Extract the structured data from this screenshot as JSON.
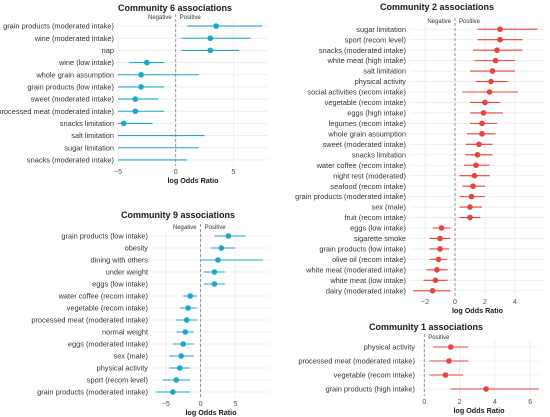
{
  "chart_data": [
    {
      "type": "scatter",
      "subtype": "forest",
      "title": "Community 6 associations",
      "xlabel": "log Odds Ratio",
      "neg_label": "Negative",
      "pos_label": "Positive",
      "xlim": [
        -5,
        8
      ],
      "xticks": [
        -5,
        0,
        5
      ],
      "color": "#1aa7c9",
      "rows": [
        {
          "label": "grain products (moderated intake)",
          "est": 3.5,
          "lo": 1.0,
          "hi": 7.5
        },
        {
          "label": "wine (moderated intake)",
          "est": 3.0,
          "lo": 0.5,
          "hi": 6.5
        },
        {
          "label": "nap",
          "est": 3.0,
          "lo": 0.5,
          "hi": 5.5
        },
        {
          "label": "wine (low intake)",
          "est": -2.5,
          "lo": -4.0,
          "hi": -1.0
        },
        {
          "label": "whole grain assumption",
          "est": -3.0,
          "lo": -8.0,
          "hi": 2.0
        },
        {
          "label": "grain products (low intake)",
          "est": -3.0,
          "lo": -5.5,
          "hi": -1.0
        },
        {
          "label": "sweet (moderated intake)",
          "est": -3.5,
          "lo": -5.5,
          "hi": -1.5
        },
        {
          "label": "processed meat (moderated intake)",
          "est": -3.5,
          "lo": -6.0,
          "hi": -1.0
        },
        {
          "label": "snacks limitation",
          "est": -4.5,
          "lo": -7.0,
          "hi": -2.0
        },
        {
          "label": "salt limitation",
          "est": null,
          "lo": -8.0,
          "hi": 2.5
        },
        {
          "label": "sugar limitation",
          "est": null,
          "lo": -8.0,
          "hi": 2.0
        },
        {
          "label": "snacks (moderated intake)",
          "est": null,
          "lo": -8.0,
          "hi": 1.0
        }
      ]
    },
    {
      "type": "scatter",
      "subtype": "forest",
      "title": "Community 2 associations",
      "xlabel": "log Odds Ratio",
      "neg_label": "Negative",
      "pos_label": "Positive",
      "xlim": [
        -3,
        6
      ],
      "xticks": [
        -2,
        0,
        2,
        4
      ],
      "color": "#e8423b",
      "rows": [
        {
          "label": "sugar limitation",
          "est": 3.0,
          "lo": 1.5,
          "hi": 5.5
        },
        {
          "label": "sport (recom level)",
          "est": 3.0,
          "lo": 1.5,
          "hi": 4.5
        },
        {
          "label": "snacks (moderated intake)",
          "est": 2.8,
          "lo": 1.2,
          "hi": 4.5
        },
        {
          "label": "white meat (high intake)",
          "est": 2.7,
          "lo": 1.3,
          "hi": 4.0
        },
        {
          "label": "salt limitation",
          "est": 2.5,
          "lo": 1.0,
          "hi": 4.0
        },
        {
          "label": "physical activity",
          "est": 2.4,
          "lo": 1.4,
          "hi": 3.5
        },
        {
          "label": "social activities (recom intake)",
          "est": 2.3,
          "lo": 0.5,
          "hi": 4.2
        },
        {
          "label": "vegetable (recom intake)",
          "est": 2.0,
          "lo": 1.0,
          "hi": 3.0
        },
        {
          "label": "eggs (high intake)",
          "est": 1.9,
          "lo": 1.0,
          "hi": 3.2
        },
        {
          "label": "legumes (recom intake)",
          "est": 1.8,
          "lo": 1.0,
          "hi": 2.8
        },
        {
          "label": "whole grain assumption",
          "est": 1.8,
          "lo": 0.8,
          "hi": 2.7
        },
        {
          "label": "sweet (moderated intake)",
          "est": 1.6,
          "lo": 0.7,
          "hi": 2.5
        },
        {
          "label": "snacks limitation",
          "est": 1.5,
          "lo": 0.7,
          "hi": 2.5
        },
        {
          "label": "water coffee (recom intake)",
          "est": 1.4,
          "lo": 0.6,
          "hi": 2.3
        },
        {
          "label": "night rest (moderated)",
          "est": 1.3,
          "lo": 0.3,
          "hi": 2.3
        },
        {
          "label": "seafood (recom intake)",
          "est": 1.2,
          "lo": 0.5,
          "hi": 2.0
        },
        {
          "label": "grain products (moderated intake)",
          "est": 1.1,
          "lo": 0.3,
          "hi": 2.0
        },
        {
          "label": "sex (male)",
          "est": 1.0,
          "lo": 0.3,
          "hi": 1.8
        },
        {
          "label": "fruit (recom intake)",
          "est": 1.0,
          "lo": 0.3,
          "hi": 1.7
        },
        {
          "label": "eggs (low intake)",
          "est": -0.9,
          "lo": -1.5,
          "hi": -0.3
        },
        {
          "label": "sigarette smoke",
          "est": -1.0,
          "lo": -1.7,
          "hi": -0.3
        },
        {
          "label": "grain products (low intake)",
          "est": -1.0,
          "lo": -1.7,
          "hi": -0.4
        },
        {
          "label": "olive oil (recom intake)",
          "est": -1.1,
          "lo": -1.7,
          "hi": -0.5
        },
        {
          "label": "white meat (moderated intake)",
          "est": -1.2,
          "lo": -1.9,
          "hi": -0.5
        },
        {
          "label": "white meat (low intake)",
          "est": -1.3,
          "lo": -2.1,
          "hi": -0.5
        },
        {
          "label": "dairy (moderated intake)",
          "est": -1.5,
          "lo": -2.8,
          "hi": -0.3
        }
      ]
    },
    {
      "type": "scatter",
      "subtype": "forest",
      "title": "Community 9 associations",
      "xlabel": "log Odds Ratio",
      "neg_label": "Negative",
      "pos_label": "Positive",
      "xlim": [
        -7,
        10
      ],
      "xticks": [
        -5,
        0,
        5
      ],
      "color": "#1aa7c9",
      "rows": [
        {
          "label": "grain products (low intake)",
          "est": 4.0,
          "lo": 2.0,
          "hi": 6.5
        },
        {
          "label": "obesity",
          "est": 3.0,
          "lo": 1.5,
          "hi": 5.0
        },
        {
          "label": "dining with others",
          "est": 2.5,
          "lo": 0.0,
          "hi": 9.0
        },
        {
          "label": "under weight",
          "est": 2.0,
          "lo": 0.5,
          "hi": 3.5
        },
        {
          "label": "eggs (low intake)",
          "est": 2.0,
          "lo": 0.5,
          "hi": 3.5
        },
        {
          "label": "water coffee (recom intake)",
          "est": -1.5,
          "lo": -2.5,
          "hi": -0.5
        },
        {
          "label": "vegetable (recom intake)",
          "est": -1.8,
          "lo": -3.0,
          "hi": -0.5
        },
        {
          "label": "processed meat (moderated intake)",
          "est": -2.0,
          "lo": -3.5,
          "hi": -0.5
        },
        {
          "label": "normal weight",
          "est": -2.2,
          "lo": -3.5,
          "hi": -1.0
        },
        {
          "label": "eggs (moderated intake)",
          "est": -2.5,
          "lo": -4.0,
          "hi": -1.0
        },
        {
          "label": "sex (male)",
          "est": -2.8,
          "lo": -4.5,
          "hi": -1.0
        },
        {
          "label": "physical activity",
          "est": -3.0,
          "lo": -4.5,
          "hi": -1.5
        },
        {
          "label": "sport (recom level)",
          "est": -3.5,
          "lo": -5.5,
          "hi": -1.5
        },
        {
          "label": "grain products (moderated intake)",
          "est": -4.0,
          "lo": -6.5,
          "hi": -1.5
        }
      ]
    },
    {
      "type": "scatter",
      "subtype": "forest",
      "title": "Community 1 associations",
      "xlabel": "log Odds Ratio",
      "neg_label": "",
      "pos_label": "Positive",
      "xlim": [
        -0.3,
        6.5
      ],
      "xticks": [
        0,
        2,
        4,
        6
      ],
      "color": "#e8423b",
      "rows": [
        {
          "label": "physical activity",
          "est": 1.5,
          "lo": 0.5,
          "hi": 2.5
        },
        {
          "label": "processed meat (moderated intake)",
          "est": 1.4,
          "lo": 0.3,
          "hi": 2.5
        },
        {
          "label": "vegetable (recom intake)",
          "est": 1.2,
          "lo": 0.3,
          "hi": 2.2
        },
        {
          "label": "grain products (high intake)",
          "est": 3.5,
          "lo": 1.5,
          "hi": 6.5
        }
      ]
    }
  ]
}
